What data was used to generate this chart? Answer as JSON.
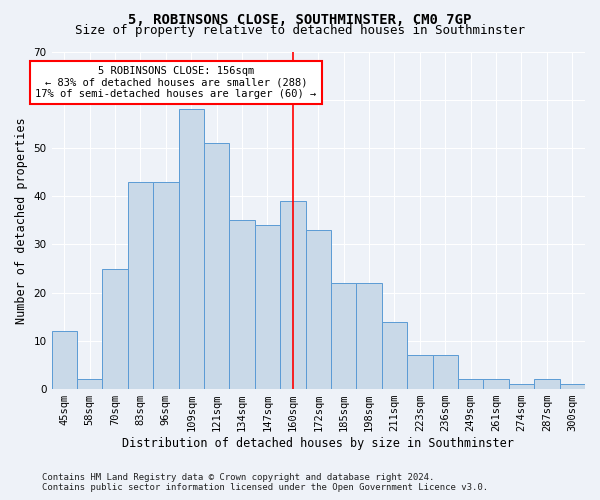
{
  "title": "5, ROBINSONS CLOSE, SOUTHMINSTER, CM0 7GP",
  "subtitle": "Size of property relative to detached houses in Southminster",
  "xlabel": "Distribution of detached houses by size in Southminster",
  "ylabel": "Number of detached properties",
  "categories": [
    "45sqm",
    "58sqm",
    "70sqm",
    "83sqm",
    "96sqm",
    "109sqm",
    "121sqm",
    "134sqm",
    "147sqm",
    "160sqm",
    "172sqm",
    "185sqm",
    "198sqm",
    "211sqm",
    "223sqm",
    "236sqm",
    "249sqm",
    "261sqm",
    "274sqm",
    "287sqm",
    "300sqm"
  ],
  "values": [
    12,
    2,
    25,
    43,
    43,
    58,
    51,
    35,
    34,
    39,
    33,
    22,
    22,
    14,
    7,
    7,
    2,
    2,
    1,
    2,
    1
  ],
  "bar_color": "#c9d9e8",
  "bar_edge_color": "#5b9bd5",
  "property_line_x": 9.0,
  "annotation_text_line1": "5 ROBINSONS CLOSE: 156sqm",
  "annotation_text_line2": "← 83% of detached houses are smaller (288)",
  "annotation_text_line3": "17% of semi-detached houses are larger (60) →",
  "annotation_box_color": "white",
  "annotation_box_edge_color": "red",
  "vline_color": "red",
  "ylim": [
    0,
    70
  ],
  "yticks": [
    0,
    10,
    20,
    30,
    40,
    50,
    60,
    70
  ],
  "footer_line1": "Contains HM Land Registry data © Crown copyright and database right 2024.",
  "footer_line2": "Contains public sector information licensed under the Open Government Licence v3.0.",
  "bg_color": "#eef2f8",
  "grid_color": "white",
  "title_fontsize": 10,
  "subtitle_fontsize": 9,
  "axis_label_fontsize": 8.5,
  "tick_fontsize": 7.5,
  "footer_fontsize": 6.5,
  "annotation_fontsize": 7.5
}
